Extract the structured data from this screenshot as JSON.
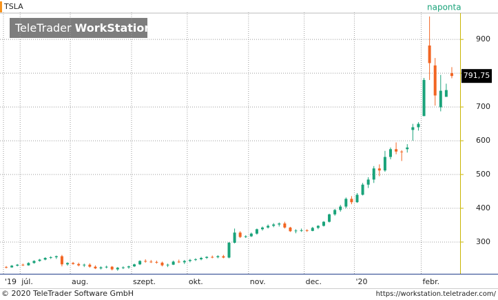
{
  "chart_data": {
    "type": "candlestick",
    "title": "TSLA",
    "interval": "naponta",
    "logo": {
      "light": "TeleTrader",
      "bold": "WorkStation"
    },
    "footer_left": "© 2020 TeleTrader Software GmbH",
    "footer_right": "https://workstation.teletrader.com/",
    "up_color": "#1aa37a",
    "down_color": "#f26522",
    "ylim": [
      206,
      980
    ],
    "yticks": [
      300,
      400,
      500,
      600,
      700,
      800,
      900
    ],
    "xlim": [
      0,
      81
    ],
    "xticks": [
      {
        "value": 0,
        "label": "'19"
      },
      {
        "value": 3,
        "label": "júl."
      },
      {
        "value": 12,
        "label": "aug."
      },
      {
        "value": 23,
        "label": "szept."
      },
      {
        "value": 33,
        "label": "okt."
      },
      {
        "value": 44,
        "label": "nov."
      },
      {
        "value": 54,
        "label": "dec."
      },
      {
        "value": 63,
        "label": "'20"
      },
      {
        "value": 75,
        "label": "febr."
      }
    ],
    "grid": true,
    "last_price": {
      "value": 791.75,
      "label": "791,75"
    },
    "candles": [
      [
        226,
        229,
        222,
        225
      ],
      [
        225,
        232,
        224,
        230
      ],
      [
        230,
        235,
        228,
        233
      ],
      [
        233,
        236,
        229,
        231
      ],
      [
        231,
        240,
        230,
        238
      ],
      [
        238,
        246,
        236,
        244
      ],
      [
        244,
        250,
        242,
        248
      ],
      [
        248,
        255,
        246,
        253
      ],
      [
        253,
        258,
        250,
        255
      ],
      [
        255,
        260,
        250,
        258
      ],
      [
        258,
        262,
        228,
        234
      ],
      [
        234,
        240,
        230,
        238
      ],
      [
        238,
        241,
        233,
        235
      ],
      [
        235,
        239,
        228,
        231
      ],
      [
        231,
        236,
        226,
        233
      ],
      [
        233,
        237,
        224,
        227
      ],
      [
        227,
        231,
        220,
        222
      ],
      [
        222,
        228,
        219,
        225
      ],
      [
        225,
        230,
        222,
        227
      ],
      [
        227,
        229,
        216,
        219
      ],
      [
        219,
        226,
        215,
        224
      ],
      [
        224,
        228,
        220,
        225
      ],
      [
        225,
        230,
        221,
        228
      ],
      [
        228,
        236,
        226,
        234
      ],
      [
        234,
        246,
        232,
        244
      ],
      [
        244,
        249,
        239,
        242
      ],
      [
        242,
        247,
        238,
        241
      ],
      [
        241,
        245,
        236,
        239
      ],
      [
        239,
        242,
        228,
        231
      ],
      [
        231,
        236,
        226,
        233
      ],
      [
        233,
        245,
        232,
        242
      ],
      [
        242,
        248,
        238,
        240
      ],
      [
        240,
        247,
        235,
        244
      ],
      [
        244,
        250,
        240,
        247
      ],
      [
        247,
        252,
        244,
        249
      ],
      [
        249,
        256,
        246,
        253
      ],
      [
        253,
        258,
        250,
        256
      ],
      [
        256,
        260,
        252,
        255
      ],
      [
        255,
        261,
        252,
        258
      ],
      [
        258,
        262,
        252,
        254
      ],
      [
        254,
        300,
        252,
        298
      ],
      [
        298,
        340,
        296,
        328
      ],
      [
        328,
        332,
        312,
        315
      ],
      [
        315,
        320,
        312,
        317
      ],
      [
        317,
        328,
        315,
        325
      ],
      [
        325,
        340,
        322,
        338
      ],
      [
        338,
        346,
        334,
        343
      ],
      [
        343,
        352,
        340,
        348
      ],
      [
        348,
        356,
        344,
        352
      ],
      [
        352,
        358,
        346,
        355
      ],
      [
        355,
        360,
        340,
        343
      ],
      [
        343,
        345,
        330,
        332
      ],
      [
        332,
        338,
        326,
        334
      ],
      [
        334,
        340,
        330,
        335
      ],
      [
        335,
        338,
        330,
        333
      ],
      [
        333,
        345,
        332,
        342
      ],
      [
        342,
        350,
        338,
        348
      ],
      [
        348,
        362,
        346,
        360
      ],
      [
        360,
        384,
        358,
        382
      ],
      [
        382,
        398,
        378,
        395
      ],
      [
        395,
        410,
        390,
        405
      ],
      [
        405,
        432,
        400,
        428
      ],
      [
        428,
        436,
        412,
        418
      ],
      [
        418,
        445,
        416,
        440
      ],
      [
        440,
        475,
        438,
        470
      ],
      [
        470,
        492,
        460,
        485
      ],
      [
        485,
        525,
        475,
        518
      ],
      [
        518,
        530,
        495,
        512
      ],
      [
        512,
        570,
        508,
        552
      ],
      [
        552,
        580,
        545,
        575
      ],
      [
        575,
        595,
        560,
        568
      ],
      [
        568,
        572,
        540,
        566
      ],
      [
        575,
        590,
        565,
        580
      ],
      [
        632,
        650,
        600,
        640
      ],
      [
        640,
        655,
        630,
        650
      ],
      [
        673,
        786,
        673,
        780
      ],
      [
        882,
        968,
        780,
        830
      ],
      [
        823,
        845,
        704,
        734
      ],
      [
        699,
        795,
        687,
        748
      ],
      [
        730,
        769,
        730,
        750
      ],
      [
        800,
        818,
        785,
        791.75
      ]
    ]
  }
}
